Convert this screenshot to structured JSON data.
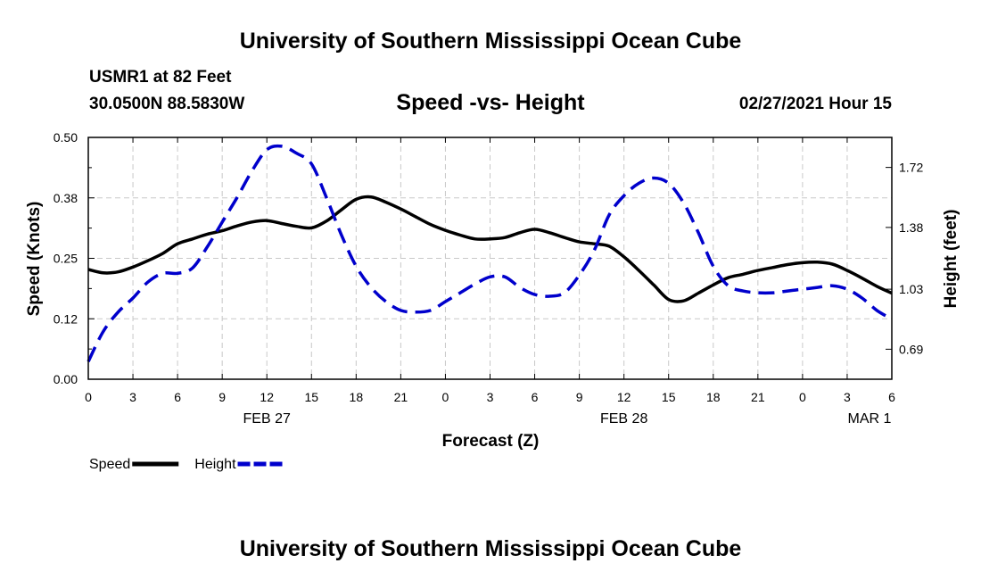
{
  "header": {
    "title": "University of Southern Mississippi Ocean Cube",
    "station": "USMR1 at 82 Feet",
    "location": "30.0500N 88.5830W",
    "datetime": "02/27/2021 Hour 15"
  },
  "footer": {
    "title": "University of Southern Mississippi Ocean Cube"
  },
  "chart_data": {
    "type": "line",
    "title": "Speed -vs- Height",
    "xlabel": "Forecast (Z)",
    "ylabel": "Speed (Knots)",
    "y2label": "Height (feet)",
    "xlim": [
      0,
      54
    ],
    "ylim": [
      0,
      0.5
    ],
    "y2lim": [
      0.52,
      1.89
    ],
    "grid": true,
    "x_ticks": [
      0,
      3,
      6,
      9,
      12,
      15,
      18,
      21,
      24,
      27,
      30,
      33,
      36,
      39,
      42,
      45,
      48,
      51,
      54
    ],
    "x_tick_labels": [
      "0",
      "3",
      "6",
      "9",
      "12",
      "15",
      "18",
      "21",
      "0",
      "3",
      "6",
      "9",
      "12",
      "15",
      "18",
      "21",
      "0",
      "3",
      "6"
    ],
    "date_labels": [
      {
        "x": 12,
        "label": "FEB 27"
      },
      {
        "x": 36,
        "label": "FEB 28"
      },
      {
        "x": 52.5,
        "label": "MAR 1"
      }
    ],
    "y_ticks": [
      0,
      0.125,
      0.25,
      0.375,
      0.5
    ],
    "y_tick_labels": [
      "0.00",
      "0.12",
      "0.25",
      "0.38",
      "0.50"
    ],
    "y2_ticks": [
      0.69,
      1.03,
      1.38,
      1.72
    ],
    "y2_tick_labels": [
      "0.69",
      "1.03",
      "1.38",
      "1.72"
    ],
    "series": [
      {
        "name": "Speed",
        "axis": "left",
        "color": "#000000",
        "dash": "solid",
        "x": [
          0,
          1,
          2,
          3,
          4,
          5,
          6,
          7,
          8,
          9,
          10,
          11,
          12,
          13,
          14,
          15,
          16,
          17,
          18,
          19,
          20,
          21,
          22,
          23,
          24,
          25,
          26,
          27,
          28,
          29,
          30,
          31,
          32,
          33,
          34,
          35,
          36,
          37,
          38,
          39,
          40,
          41,
          42,
          43,
          44,
          45,
          46,
          47,
          48,
          49,
          50,
          51,
          52,
          53,
          54
        ],
        "values": [
          0.227,
          0.22,
          0.222,
          0.232,
          0.245,
          0.26,
          0.28,
          0.29,
          0.3,
          0.307,
          0.317,
          0.325,
          0.328,
          0.322,
          0.316,
          0.313,
          0.327,
          0.35,
          0.372,
          0.377,
          0.366,
          0.352,
          0.336,
          0.32,
          0.308,
          0.298,
          0.29,
          0.29,
          0.293,
          0.303,
          0.31,
          0.303,
          0.293,
          0.284,
          0.28,
          0.275,
          0.253,
          0.225,
          0.195,
          0.165,
          0.162,
          0.178,
          0.195,
          0.21,
          0.217,
          0.225,
          0.231,
          0.237,
          0.241,
          0.242,
          0.238,
          0.225,
          0.209,
          0.192,
          0.178
        ]
      },
      {
        "name": "Height",
        "axis": "right",
        "color": "#0000cc",
        "dash": "dashed",
        "x": [
          0,
          1,
          2,
          3,
          4,
          5,
          6,
          7,
          8,
          9,
          10,
          11,
          12,
          13,
          14,
          15,
          16,
          17,
          18,
          19,
          20,
          21,
          22,
          23,
          24,
          25,
          26,
          27,
          28,
          29,
          30,
          31,
          32,
          33,
          34,
          35,
          36,
          37,
          38,
          39,
          40,
          41,
          42,
          43,
          44,
          45,
          46,
          47,
          48,
          49,
          50,
          51,
          52,
          53,
          54
        ],
        "values": [
          0.62,
          0.79,
          0.9,
          0.98,
          1.07,
          1.12,
          1.12,
          1.15,
          1.27,
          1.41,
          1.55,
          1.7,
          1.82,
          1.84,
          1.8,
          1.74,
          1.55,
          1.34,
          1.16,
          1.04,
          0.96,
          0.91,
          0.9,
          0.91,
          0.96,
          1.01,
          1.06,
          1.1,
          1.1,
          1.04,
          1.0,
          0.99,
          1.01,
          1.11,
          1.25,
          1.45,
          1.56,
          1.63,
          1.66,
          1.63,
          1.52,
          1.35,
          1.16,
          1.05,
          1.02,
          1.01,
          1.01,
          1.02,
          1.03,
          1.04,
          1.05,
          1.03,
          0.98,
          0.91,
          0.86
        ]
      }
    ],
    "legend": [
      {
        "label": "Speed",
        "color": "#000000",
        "dash": "solid"
      },
      {
        "label": "Height",
        "color": "#0000cc",
        "dash": "dashed"
      }
    ],
    "legend_position": "bottom-left"
  }
}
